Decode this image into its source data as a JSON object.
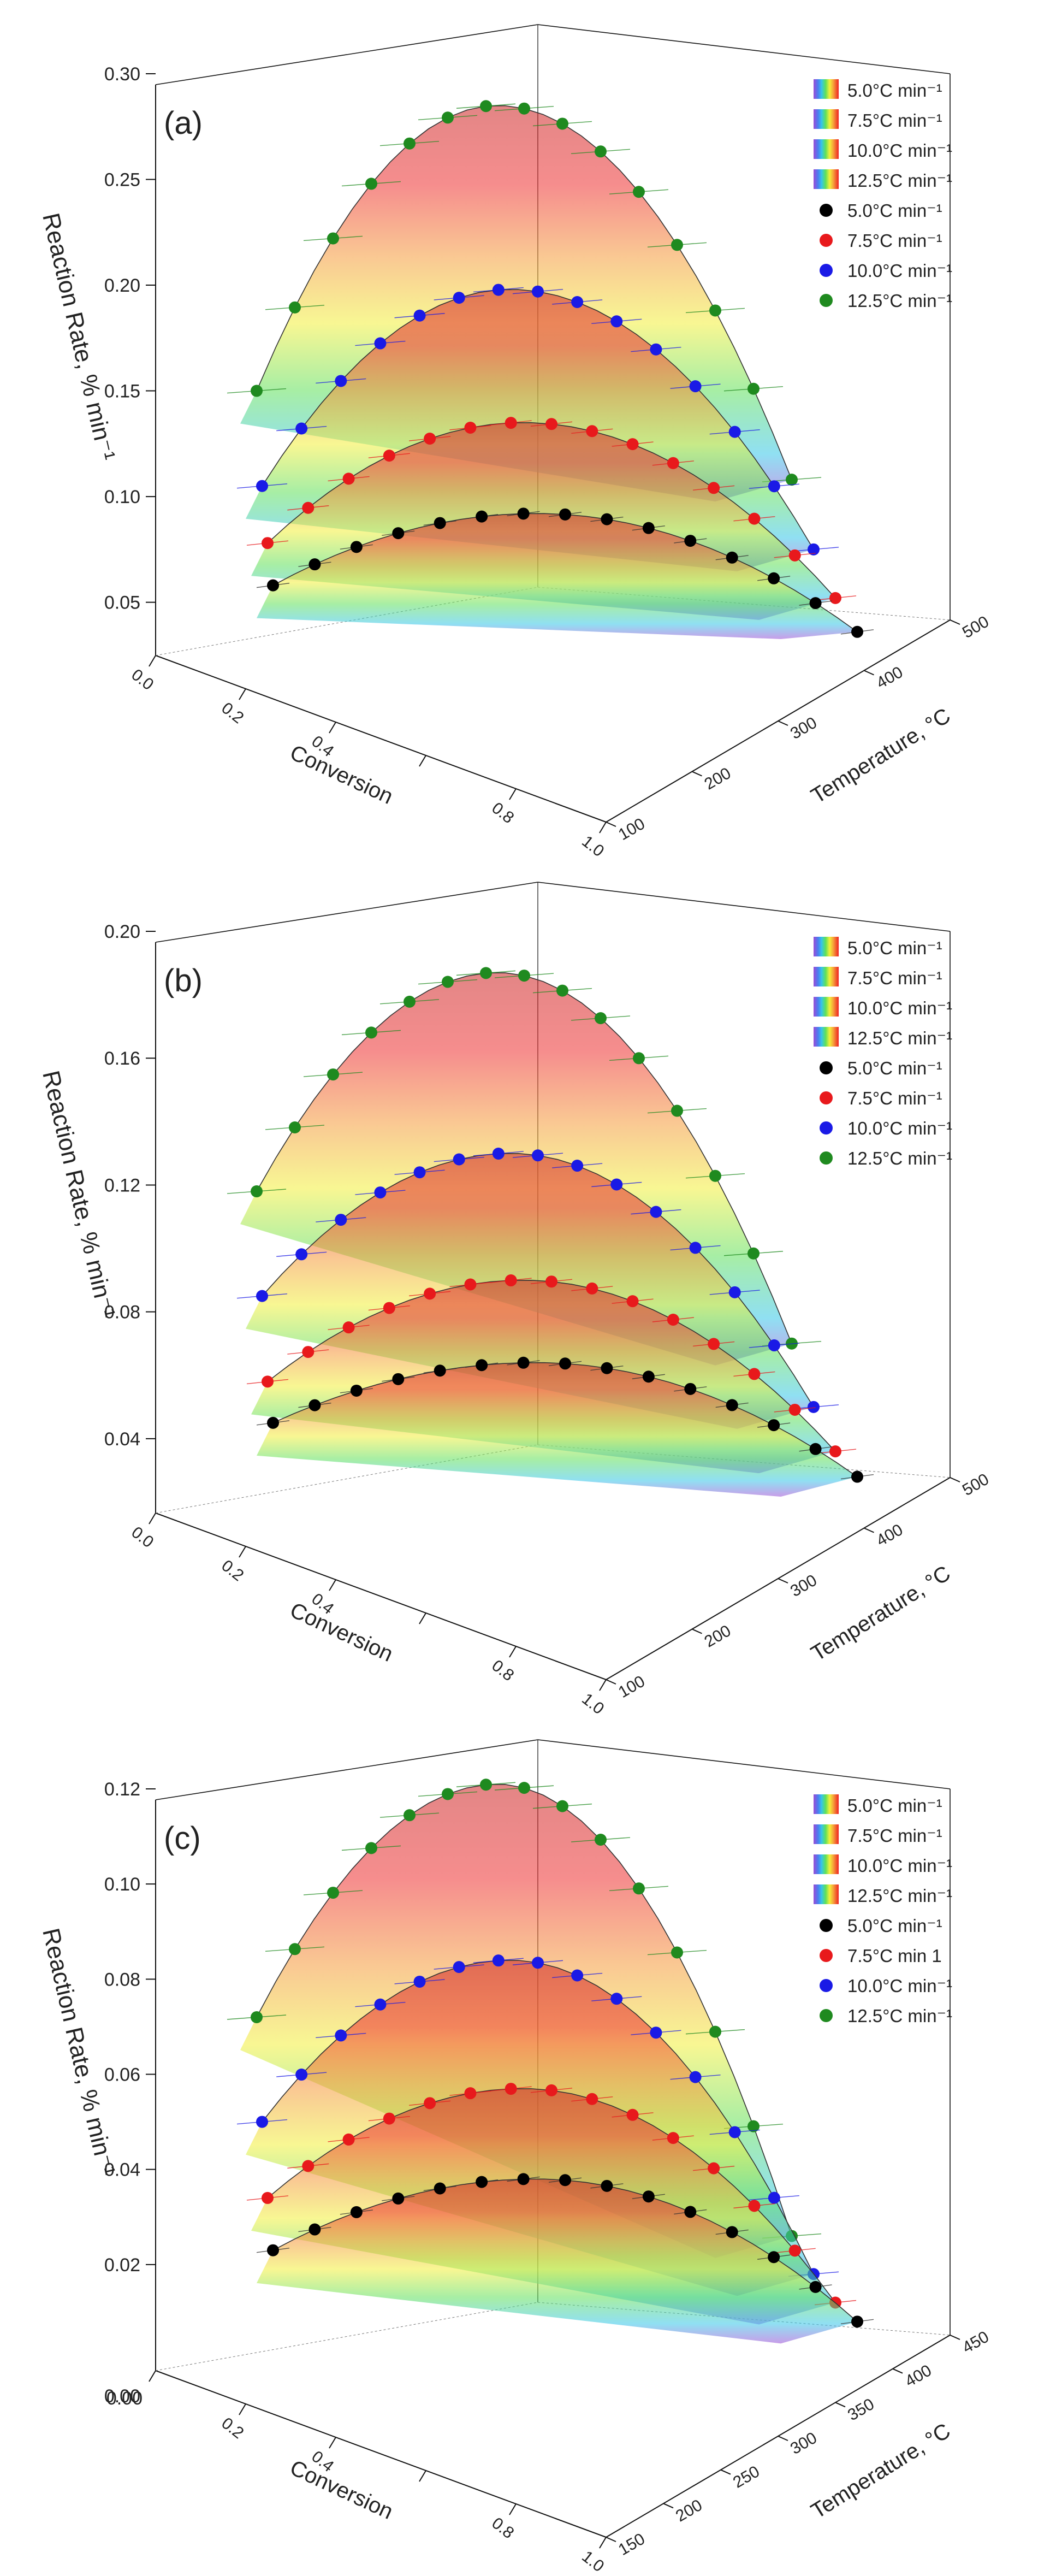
{
  "chart_data": [
    {
      "type": "surface3d",
      "panel_label": "(a)",
      "zlabel": "Reaction Rate, % min⁻¹",
      "xlabel": "Conversion",
      "ylabel": "Temperature, °C",
      "z_ticks": [
        "0.05",
        "0.10",
        "0.15",
        "0.20",
        "0.25",
        "0.30"
      ],
      "zlim": [
        0.03,
        0.3
      ],
      "x_ticks": [
        "0.0",
        "0.2",
        "0.4",
        "0.6",
        "0.8",
        "1.0"
      ],
      "x_tick_labels_shown": [
        "0.0",
        "0.2",
        "0.4",
        "",
        "0.8",
        "1.0"
      ],
      "y_ticks": [
        "100",
        "200",
        "300",
        "400",
        "500"
      ],
      "legend": {
        "surface_entries": [
          "5.0°C min⁻¹",
          "7.5°C min⁻¹",
          "10.0°C min⁻¹",
          "12.5°C min⁻¹"
        ],
        "point_entries": [
          "5.0°C min⁻¹",
          "7.5°C min⁻¹",
          "10.0°C min⁻¹",
          "12.5°C min⁻¹"
        ]
      },
      "series": [
        {
          "name": "5.0°C min⁻¹",
          "color": "#000000",
          "z_start": 0.058,
          "z_peak": 0.092,
          "z_end": 0.036
        },
        {
          "name": "7.5°C min⁻¹",
          "color": "#e8191c",
          "z_start": 0.078,
          "z_peak": 0.135,
          "z_end": 0.052
        },
        {
          "name": "10.0°C min⁻¹",
          "color": "#1a1ae6",
          "z_start": 0.105,
          "z_peak": 0.198,
          "z_end": 0.075
        },
        {
          "name": "12.5°C min⁻¹",
          "color": "#1f8a1f",
          "z_start": 0.15,
          "z_peak": 0.285,
          "z_end": 0.108
        }
      ]
    },
    {
      "type": "surface3d",
      "panel_label": "(b)",
      "zlabel": "Reaction Rate, % min⁻¹",
      "xlabel": "Conversion",
      "ylabel": "Temperature, °C",
      "z_ticks": [
        "0.04",
        "0.08",
        "0.12",
        "0.16",
        "0.20"
      ],
      "zlim": [
        0.02,
        0.2
      ],
      "x_ticks": [
        "0.0",
        "0.2",
        "0.4",
        "0.6",
        "0.8",
        "1.0"
      ],
      "x_tick_labels_shown": [
        "0.0",
        "0.2",
        "0.4",
        "",
        "0.8",
        "1.0"
      ],
      "y_ticks": [
        "100",
        "200",
        "300",
        "400",
        "500"
      ],
      "legend": {
        "surface_entries": [
          "5.0°C min⁻¹",
          "7.5°C min⁻¹",
          "10.0°C min⁻¹",
          "12.5°C min⁻¹"
        ],
        "point_entries": [
          "5.0°C min⁻¹",
          "7.5°C min⁻¹",
          "10.0°C min⁻¹",
          "12.5°C min⁻¹"
        ]
      },
      "series": [
        {
          "name": "5.0°C min⁻¹",
          "color": "#000000",
          "z_start": 0.045,
          "z_peak": 0.064,
          "z_end": 0.028
        },
        {
          "name": "7.5°C min⁻¹",
          "color": "#e8191c",
          "z_start": 0.058,
          "z_peak": 0.09,
          "z_end": 0.036
        },
        {
          "name": "10.0°C min⁻¹",
          "color": "#1a1ae6",
          "z_start": 0.085,
          "z_peak": 0.13,
          "z_end": 0.05
        },
        {
          "name": "12.5°C min⁻¹",
          "color": "#1f8a1f",
          "z_start": 0.118,
          "z_peak": 0.187,
          "z_end": 0.07
        }
      ]
    },
    {
      "type": "surface3d",
      "panel_label": "(c)",
      "zlabel": "Reaction Rate, % min⁻¹",
      "xlabel": "Conversion",
      "ylabel": "Temperature, °C",
      "z_ticks": [
        "0.02",
        "0.04",
        "0.06",
        "0.08",
        "0.10",
        "0.12"
      ],
      "zlim": [
        0.0,
        0.12
      ],
      "z_axis_origin_labels": [
        "0.00",
        "0.00"
      ],
      "x_ticks": [
        "0.0",
        "0.2",
        "0.4",
        "0.6",
        "0.8",
        "1.0"
      ],
      "x_tick_labels_shown": [
        "",
        "0.2",
        "0.4",
        "",
        "0.8",
        "1.0"
      ],
      "y_ticks": [
        "150",
        "200",
        "250",
        "300",
        "350",
        "400",
        "450"
      ],
      "legend": {
        "surface_entries": [
          "5.0°C min⁻¹",
          "7.5°C min⁻¹",
          "10.0°C min⁻¹",
          "12.5°C min⁻¹"
        ],
        "point_entries": [
          "5.0°C min⁻¹",
          "7.5°C min 1",
          "10.0°C min⁻¹",
          "12.5°C min⁻¹"
        ]
      },
      "series": [
        {
          "name": "5.0°C min⁻¹",
          "color": "#000000",
          "z_start": 0.023,
          "z_peak": 0.038,
          "z_end": 0.008
        },
        {
          "name": "7.5°C min⁻¹",
          "color": "#e8191c",
          "z_start": 0.034,
          "z_peak": 0.057,
          "z_end": 0.012
        },
        {
          "name": "10.0°C min⁻¹",
          "color": "#1a1ae6",
          "z_start": 0.05,
          "z_peak": 0.084,
          "z_end": 0.018
        },
        {
          "name": "12.5°C min⁻¹",
          "color": "#1f8a1f",
          "z_start": 0.072,
          "z_peak": 0.121,
          "z_end": 0.026
        }
      ]
    }
  ]
}
